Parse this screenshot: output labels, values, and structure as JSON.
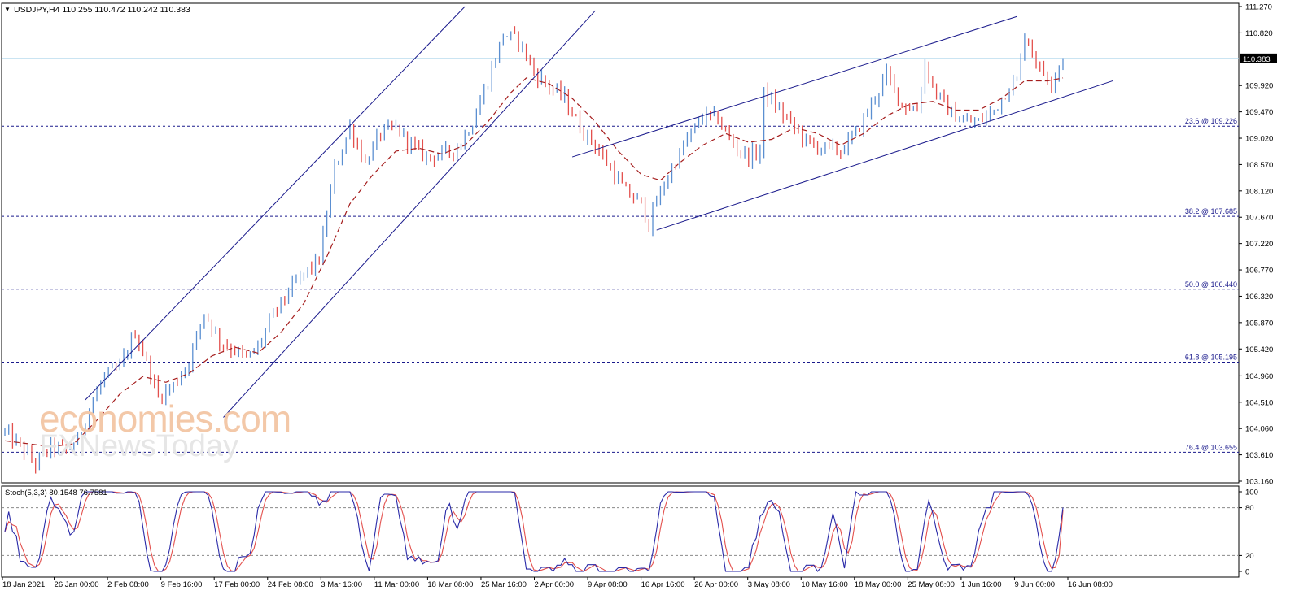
{
  "header": {
    "menu_arrow": "▼",
    "title": "USDJPY,H4 110.255 110.472 110.242 110.383"
  },
  "watermark": {
    "brand_top": "economies.com",
    "brand_bottom": "FXNewsToday"
  },
  "chart_data": {
    "type": "candlestick",
    "symbol": "USDJPY",
    "timeframe": "H4",
    "ohlc_header": {
      "open": 110.255,
      "high": 110.472,
      "low": 110.242,
      "close": 110.383
    },
    "current_price": 110.383,
    "current_price_label": "110.383",
    "ylim": [
      103.16,
      111.27
    ],
    "yticks": [
      "111.270",
      "110.820",
      "110.383",
      "109.920",
      "109.470",
      "109.020",
      "108.570",
      "108.120",
      "107.670",
      "107.220",
      "106.770",
      "106.320",
      "105.870",
      "105.420",
      "104.960",
      "104.510",
      "104.060",
      "103.610",
      "103.160"
    ],
    "ytick_values": [
      111.27,
      110.82,
      110.383,
      109.92,
      109.47,
      109.02,
      108.57,
      108.12,
      107.67,
      107.22,
      106.77,
      106.32,
      105.87,
      105.42,
      104.96,
      104.51,
      104.06,
      103.61,
      103.16
    ],
    "xticks": [
      "18 Jan 2021",
      "26 Jan 00:00",
      "2 Feb 08:00",
      "9 Feb 16:00",
      "17 Feb 00:00",
      "24 Feb 08:00",
      "3 Mar 16:00",
      "11 Mar 00:00",
      "18 Mar 08:00",
      "25 Mar 16:00",
      "2 Apr 00:00",
      "9 Apr 08:00",
      "16 Apr 16:00",
      "26 Apr 00:00",
      "3 May 08:00",
      "10 May 16:00",
      "18 May 00:00",
      "25 May 08:00",
      "1 Jun 16:00",
      "9 Jun 00:00",
      "16 Jun 08:00"
    ],
    "fibonacci": [
      {
        "label": "23.6 @ 109.226",
        "value": 109.226
      },
      {
        "label": "38.2 @ 107.685",
        "value": 107.685
      },
      {
        "label": "50.0 @ 106.440",
        "value": 106.44
      },
      {
        "label": "61.8 @ 105.195",
        "value": 105.195
      },
      {
        "label": "76.4 @ 103.655",
        "value": 103.655
      }
    ],
    "path_points": [
      [
        0,
        104.0
      ],
      [
        4,
        103.75
      ],
      [
        8,
        103.45
      ],
      [
        12,
        103.75
      ],
      [
        16,
        103.7
      ],
      [
        19,
        103.85
      ],
      [
        22,
        104.4
      ],
      [
        26,
        104.95
      ],
      [
        30,
        105.1
      ],
      [
        34,
        105.7
      ],
      [
        37,
        105.2
      ],
      [
        40,
        104.6
      ],
      [
        44,
        104.8
      ],
      [
        48,
        105.2
      ],
      [
        52,
        106.05
      ],
      [
        56,
        105.55
      ],
      [
        60,
        105.4
      ],
      [
        63,
        105.25
      ],
      [
        66,
        105.45
      ],
      [
        70,
        106.0
      ],
      [
        74,
        106.4
      ],
      [
        78,
        106.7
      ],
      [
        82,
        106.95
      ],
      [
        86,
        108.5
      ],
      [
        90,
        109.2
      ],
      [
        94,
        108.6
      ],
      [
        98,
        109.1
      ],
      [
        102,
        109.2
      ],
      [
        106,
        108.9
      ],
      [
        110,
        108.7
      ],
      [
        114,
        108.75
      ],
      [
        118,
        108.85
      ],
      [
        122,
        109.3
      ],
      [
        126,
        110.0
      ],
      [
        130,
        110.8
      ],
      [
        134,
        110.7
      ],
      [
        138,
        110.15
      ],
      [
        142,
        109.9
      ],
      [
        146,
        109.7
      ],
      [
        150,
        109.2
      ],
      [
        154,
        108.9
      ],
      [
        158,
        108.5
      ],
      [
        162,
        108.1
      ],
      [
        166,
        107.9
      ],
      [
        168,
        107.55
      ],
      [
        170,
        107.95
      ],
      [
        174,
        108.5
      ],
      [
        178,
        109.0
      ],
      [
        182,
        109.4
      ],
      [
        186,
        109.35
      ],
      [
        190,
        108.9
      ],
      [
        194,
        108.7
      ],
      [
        197,
        108.8
      ],
      [
        198,
        109.8
      ],
      [
        202,
        109.5
      ],
      [
        206,
        109.2
      ],
      [
        210,
        108.9
      ],
      [
        214,
        108.85
      ],
      [
        218,
        108.8
      ],
      [
        222,
        109.1
      ],
      [
        226,
        109.6
      ],
      [
        230,
        110.1
      ],
      [
        234,
        109.6
      ],
      [
        238,
        109.5
      ],
      [
        240,
        110.3
      ],
      [
        242,
        109.9
      ],
      [
        246,
        109.5
      ],
      [
        250,
        109.3
      ],
      [
        254,
        109.3
      ],
      [
        258,
        109.5
      ],
      [
        262,
        109.9
      ],
      [
        264,
        110.0
      ],
      [
        266,
        110.8
      ],
      [
        270,
        110.2
      ],
      [
        273,
        110.0
      ],
      [
        276,
        110.383
      ]
    ],
    "moving_average_points": [
      [
        0,
        103.85
      ],
      [
        6,
        103.8
      ],
      [
        12,
        103.75
      ],
      [
        18,
        103.8
      ],
      [
        24,
        104.2
      ],
      [
        30,
        104.65
      ],
      [
        36,
        104.95
      ],
      [
        42,
        104.85
      ],
      [
        48,
        105.0
      ],
      [
        54,
        105.3
      ],
      [
        60,
        105.45
      ],
      [
        66,
        105.35
      ],
      [
        72,
        105.7
      ],
      [
        78,
        106.2
      ],
      [
        84,
        107.0
      ],
      [
        90,
        107.9
      ],
      [
        96,
        108.4
      ],
      [
        102,
        108.8
      ],
      [
        108,
        108.85
      ],
      [
        114,
        108.75
      ],
      [
        120,
        108.9
      ],
      [
        126,
        109.3
      ],
      [
        132,
        109.8
      ],
      [
        136,
        110.05
      ],
      [
        142,
        109.95
      ],
      [
        148,
        109.7
      ],
      [
        154,
        109.3
      ],
      [
        160,
        108.8
      ],
      [
        166,
        108.4
      ],
      [
        171,
        108.3
      ],
      [
        176,
        108.6
      ],
      [
        182,
        108.9
      ],
      [
        188,
        109.1
      ],
      [
        194,
        108.95
      ],
      [
        200,
        109.0
      ],
      [
        206,
        109.2
      ],
      [
        212,
        109.1
      ],
      [
        218,
        108.9
      ],
      [
        224,
        109.1
      ],
      [
        230,
        109.4
      ],
      [
        236,
        109.6
      ],
      [
        242,
        109.65
      ],
      [
        248,
        109.5
      ],
      [
        254,
        109.5
      ],
      [
        260,
        109.7
      ],
      [
        266,
        110.0
      ],
      [
        272,
        110.0
      ],
      [
        276,
        110.05
      ]
    ],
    "trendlines": [
      {
        "name": "channel1-upper",
        "p1": [
          21,
          104.55
        ],
        "p2": [
          120,
          111.27
        ]
      },
      {
        "name": "channel1-lower",
        "p1": [
          57,
          104.25
        ],
        "p2": [
          154,
          111.2
        ]
      },
      {
        "name": "channel2-upper",
        "p1": [
          148,
          108.7
        ],
        "p2": [
          264,
          111.1
        ]
      },
      {
        "name": "channel2-lower",
        "p1": [
          170,
          107.45
        ],
        "p2": [
          289,
          110.0
        ]
      }
    ],
    "bar_count": 277,
    "colors": {
      "bull": "#5b8fd1",
      "bear": "#e3504d",
      "ma": "#a51d1d",
      "trendline": "#1a1a8c",
      "fib": "#1a1a8c",
      "current_price_line": "#aad4ea"
    }
  },
  "stochastic": {
    "label": "Stoch(5,3,3) 80.1548 76.7581",
    "main_value": 80.1548,
    "signal_value": 76.7581,
    "levels": [
      80,
      20
    ],
    "yticks": [
      "100",
      "80",
      "20",
      "0"
    ],
    "colors": {
      "main": "#2a2aa8",
      "signal": "#e3504d",
      "level": "#8a8a8a"
    }
  }
}
